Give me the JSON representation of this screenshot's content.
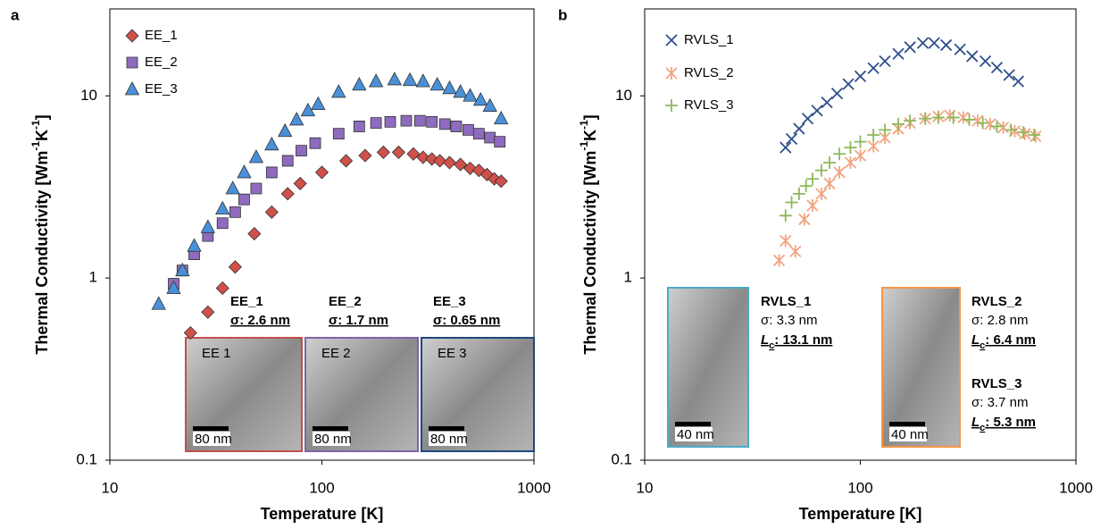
{
  "chart_data": [
    {
      "type": "scatter",
      "panel_label": "a",
      "xlabel": "Temperature [K]",
      "ylabel": [
        "Thermal Conductivity [Wm",
        "-1",
        "K",
        "-1",
        "]"
      ],
      "log_x": true,
      "log_y": true,
      "xlim": [
        10,
        1000
      ],
      "xticks": [
        10,
        100,
        1000
      ],
      "ylim": [
        0.1,
        30
      ],
      "yticks": [
        0.1,
        1,
        10
      ],
      "grid": false,
      "legend": "upper left",
      "series": [
        {
          "name": "EE_1",
          "color": "#d0504a",
          "marker": "diamond",
          "x": [
            24,
            29,
            34,
            39,
            48,
            58,
            69,
            79,
            100,
            130,
            160,
            195,
            230,
            270,
            300,
            330,
            360,
            400,
            450,
            500,
            550,
            600,
            650,
            700
          ],
          "values": [
            0.5,
            0.65,
            0.88,
            1.15,
            1.75,
            2.3,
            2.9,
            3.3,
            3.8,
            4.4,
            4.7,
            4.9,
            4.9,
            4.8,
            4.6,
            4.5,
            4.4,
            4.3,
            4.2,
            4.0,
            3.9,
            3.7,
            3.5,
            3.4
          ]
        },
        {
          "name": "EE_2",
          "color": "#8e6bbf",
          "marker": "square",
          "x": [
            20,
            22,
            25,
            29,
            34,
            39,
            43,
            49,
            58,
            69,
            80,
            93,
            120,
            150,
            180,
            210,
            250,
            290,
            330,
            380,
            430,
            490,
            550,
            620,
            690
          ],
          "values": [
            0.93,
            1.1,
            1.35,
            1.7,
            2.0,
            2.3,
            2.7,
            3.1,
            3.8,
            4.4,
            5.0,
            5.5,
            6.2,
            6.8,
            7.1,
            7.2,
            7.3,
            7.3,
            7.2,
            7.0,
            6.8,
            6.5,
            6.2,
            5.9,
            5.6
          ]
        },
        {
          "name": "EE_3",
          "color": "#4a90d9",
          "marker": "triangle",
          "x": [
            17,
            20,
            22,
            25,
            29,
            34,
            38,
            43,
            49,
            58,
            67,
            76,
            86,
            96,
            120,
            150,
            180,
            220,
            260,
            300,
            350,
            400,
            450,
            500,
            560,
            620,
            700
          ],
          "values": [
            0.72,
            0.88,
            1.1,
            1.5,
            1.9,
            2.4,
            3.1,
            3.8,
            4.6,
            5.4,
            6.4,
            7.4,
            8.3,
            9.0,
            10.5,
            11.5,
            12,
            12.3,
            12.2,
            12.0,
            11.5,
            11.0,
            10.5,
            10.0,
            9.5,
            8.8,
            7.5
          ]
        }
      ],
      "insets": [
        {
          "title": "EE_1",
          "sigma": "σ: 2.6 nm",
          "image_label": "EE 1",
          "scale": "80 nm",
          "color": "#c0504d"
        },
        {
          "title": "EE_2",
          "sigma": "σ: 1.7 nm",
          "image_label": "EE 2",
          "scale": "80 nm",
          "color": "#8064a2"
        },
        {
          "title": "EE_3",
          "sigma": "σ: 0.65 nm",
          "image_label": "EE 3",
          "scale": "80 nm",
          "color": "#1f497d"
        }
      ]
    },
    {
      "type": "scatter",
      "panel_label": "b",
      "xlabel": "Temperature [K]",
      "ylabel": [
        "Thermal Conductivity [Wm",
        "-1",
        "K",
        "-1",
        "]"
      ],
      "log_x": true,
      "log_y": true,
      "xlim": [
        10,
        1000
      ],
      "xticks": [
        10,
        100,
        1000
      ],
      "ylim": [
        0.1,
        30
      ],
      "yticks": [
        0.1,
        1,
        10
      ],
      "grid": false,
      "legend": "upper left",
      "series": [
        {
          "name": "RVLS_1",
          "color": "#2e4f8a",
          "marker": "x",
          "x": [
            45,
            48,
            52,
            57,
            63,
            70,
            78,
            88,
            100,
            115,
            130,
            150,
            170,
            195,
            220,
            250,
            290,
            330,
            380,
            430,
            490,
            540
          ],
          "values": [
            5.2,
            5.8,
            6.6,
            7.5,
            8.3,
            9.2,
            10.3,
            11.6,
            12.8,
            14.2,
            15.5,
            17,
            18.5,
            19.5,
            19.5,
            19,
            18,
            16.5,
            15.5,
            14.3,
            13,
            12
          ]
        },
        {
          "name": "RVLS_2",
          "color": "#f2a582",
          "marker": "asterisk",
          "x": [
            42,
            45,
            50,
            55,
            60,
            66,
            72,
            80,
            90,
            100,
            115,
            130,
            150,
            170,
            200,
            230,
            260,
            300,
            350,
            400,
            460,
            520,
            580,
            650
          ],
          "values": [
            1.25,
            1.6,
            1.4,
            2.1,
            2.5,
            2.9,
            3.3,
            3.8,
            4.3,
            4.7,
            5.3,
            5.9,
            6.6,
            7.1,
            7.5,
            7.7,
            7.8,
            7.6,
            7.3,
            7.0,
            6.7,
            6.4,
            6.2,
            6.0
          ]
        },
        {
          "name": "RVLS_3",
          "color": "#8db85a",
          "marker": "plus",
          "x": [
            45,
            48,
            52,
            56,
            60,
            66,
            72,
            80,
            90,
            100,
            115,
            130,
            150,
            170,
            200,
            230,
            270,
            320,
            370,
            430,
            500,
            570,
            640
          ],
          "values": [
            2.2,
            2.6,
            2.9,
            3.2,
            3.5,
            3.9,
            4.3,
            4.8,
            5.2,
            5.6,
            6.1,
            6.5,
            7.0,
            7.3,
            7.5,
            7.6,
            7.6,
            7.4,
            7.1,
            6.8,
            6.5,
            6.3,
            6.1
          ]
        }
      ],
      "insets": [
        {
          "title": "RVLS_1",
          "sigma": "σ: 3.3 nm",
          "lc": [
            "L",
            "c",
            ": 13.1 nm"
          ],
          "scale": "40 nm",
          "color": "#4bacc6"
        },
        {
          "title": "RVLS_2",
          "sigma": "σ: 2.8 nm",
          "lc": [
            "L",
            "c",
            ": 6.4 nm"
          ],
          "scale": "40 nm",
          "color": "#f79646"
        },
        {
          "title": "RVLS_3",
          "sigma": "σ: 3.7 nm",
          "lc": [
            "L",
            "c",
            ": 5.3 nm"
          ],
          "color": "#77933c"
        }
      ]
    }
  ]
}
